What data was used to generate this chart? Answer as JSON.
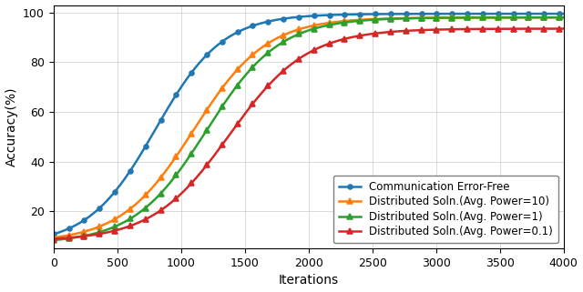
{
  "title": "",
  "xlabel": "Iterations",
  "ylabel": "Accuracy(%)",
  "xlim": [
    0,
    4000
  ],
  "ylim": [
    5,
    103
  ],
  "yticks": [
    20,
    40,
    60,
    80,
    100
  ],
  "xticks": [
    0,
    500,
    1000,
    1500,
    2000,
    2500,
    3000,
    3500,
    4000
  ],
  "lines": [
    {
      "label": "Communication Error-Free",
      "color": "#1f77b4",
      "marker": "o",
      "marker_size": 3.5,
      "style": "-",
      "x0": 800,
      "k": 0.0038,
      "ymin": 6.5,
      "ymax": 99.5
    },
    {
      "label": "Distributed Soln.(Avg. Power=10)",
      "color": "#ff7f0e",
      "marker": "^",
      "marker_size": 4,
      "style": "-",
      "x0": 1100,
      "k": 0.0035,
      "ymin": 7.5,
      "ymax": 98.0
    },
    {
      "label": "Distributed Soln.(Avg. Power=1)",
      "color": "#2ca02c",
      "marker": "^",
      "marker_size": 4,
      "style": "-",
      "x0": 1200,
      "k": 0.0035,
      "ymin": 7.0,
      "ymax": 98.0
    },
    {
      "label": "Distributed Soln.(Avg. Power=0.1)",
      "color": "#d62728",
      "marker": "^",
      "marker_size": 4,
      "style": "-",
      "x0": 1380,
      "k": 0.0033,
      "ymin": 8.0,
      "ymax": 93.5
    }
  ],
  "grid": true,
  "legend_loc": "lower right",
  "legend_fontsize": 8.5,
  "axis_fontsize": 10,
  "tick_fontsize": 9,
  "figure_facecolor": "#ffffff",
  "marker_every": 15,
  "linewidth": 1.8
}
